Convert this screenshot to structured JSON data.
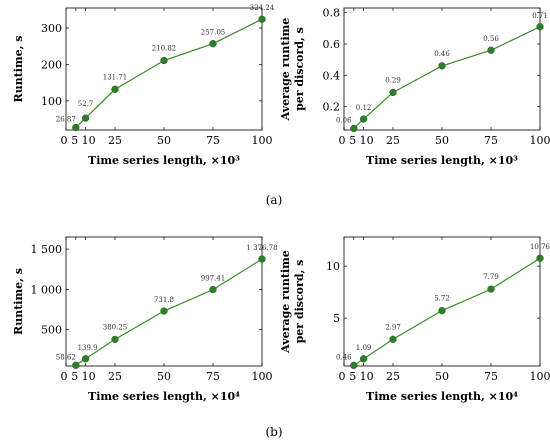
{
  "colors": {
    "series": "#3a8a2a",
    "marker": "#2f7d28",
    "axis": "#000000"
  },
  "subfigures": [
    {
      "label": "(a)"
    },
    {
      "label": "(b)"
    }
  ],
  "chart_data": [
    {
      "type": "line",
      "x": [
        5,
        10,
        25,
        50,
        75,
        100
      ],
      "values": [
        26.87,
        52.7,
        131.71,
        210.82,
        257.05,
        324.24
      ],
      "data_labels": [
        "26.87",
        "52.7",
        "131.71",
        "210.82",
        "257.05",
        "324.24"
      ],
      "xticks": [
        0,
        5,
        10,
        25,
        50,
        75,
        100
      ],
      "xtick_labels": [
        "0",
        "5",
        "10",
        "25",
        "50",
        "75",
        "100"
      ],
      "yticks": [
        100,
        200,
        300
      ],
      "ytick_labels": [
        "100",
        "200",
        "300"
      ],
      "xlim": [
        0,
        100
      ],
      "ylim": [
        20,
        355
      ],
      "xlabel": "Time series length, ×10³",
      "ylabel": [
        "Runtime,  s"
      ],
      "grid": false
    },
    {
      "type": "line",
      "x": [
        5,
        10,
        25,
        50,
        75,
        100
      ],
      "values": [
        0.06,
        0.12,
        0.29,
        0.46,
        0.56,
        0.71
      ],
      "data_labels": [
        "0.06",
        "0.12",
        "0.29",
        "0.46",
        "0.56",
        "0.71"
      ],
      "xticks": [
        0,
        5,
        10,
        25,
        50,
        75,
        100
      ],
      "xtick_labels": [
        "0",
        "5",
        "10",
        "25",
        "50",
        "75",
        "100"
      ],
      "yticks": [
        0.2,
        0.4,
        0.6,
        0.8
      ],
      "ytick_labels": [
        "0.2",
        "0.4",
        "0.6",
        "0.8"
      ],
      "xlim": [
        0,
        100
      ],
      "ylim": [
        0.05,
        0.83
      ],
      "xlabel": "Time series length, ×10³",
      "ylabel": [
        "Average  runtime",
        "per discord,  s"
      ],
      "grid": false
    },
    {
      "type": "line",
      "x": [
        5,
        10,
        25,
        50,
        75,
        100
      ],
      "values": [
        58.62,
        139.9,
        380.25,
        731.8,
        997.41,
        1376.78
      ],
      "data_labels": [
        "58.62",
        "139.9",
        "380.25",
        "731.8",
        "997.41",
        "1 376.78"
      ],
      "xticks": [
        0,
        5,
        10,
        25,
        50,
        75,
        100
      ],
      "xtick_labels": [
        "0",
        "5",
        "10",
        "25",
        "50",
        "75",
        "100"
      ],
      "yticks": [
        500,
        1000,
        1500
      ],
      "ytick_labels": [
        "500",
        "1 000",
        "1 500"
      ],
      "xlim": [
        0,
        100
      ],
      "ylim": [
        50,
        1650
      ],
      "xlabel": "Time series length, ×10⁴",
      "ylabel": [
        "Runtime,  s"
      ],
      "grid": false
    },
    {
      "type": "line",
      "x": [
        5,
        10,
        25,
        50,
        75,
        100
      ],
      "values": [
        0.46,
        1.09,
        2.97,
        5.72,
        7.79,
        10.76
      ],
      "data_labels": [
        "0.46",
        "1.09",
        "2.97",
        "5.72",
        "7.79",
        "10.76"
      ],
      "xticks": [
        0,
        5,
        10,
        25,
        50,
        75,
        100
      ],
      "xtick_labels": [
        "0",
        "5",
        "10",
        "25",
        "50",
        "75",
        "100"
      ],
      "yticks": [
        5,
        10
      ],
      "ytick_labels": [
        "5",
        "10"
      ],
      "xlim": [
        0,
        100
      ],
      "ylim": [
        0.4,
        12.8
      ],
      "xlabel": "Time series length, ×10⁴",
      "ylabel": [
        "Average  runtime",
        "per discord,  s"
      ],
      "grid": false
    }
  ]
}
